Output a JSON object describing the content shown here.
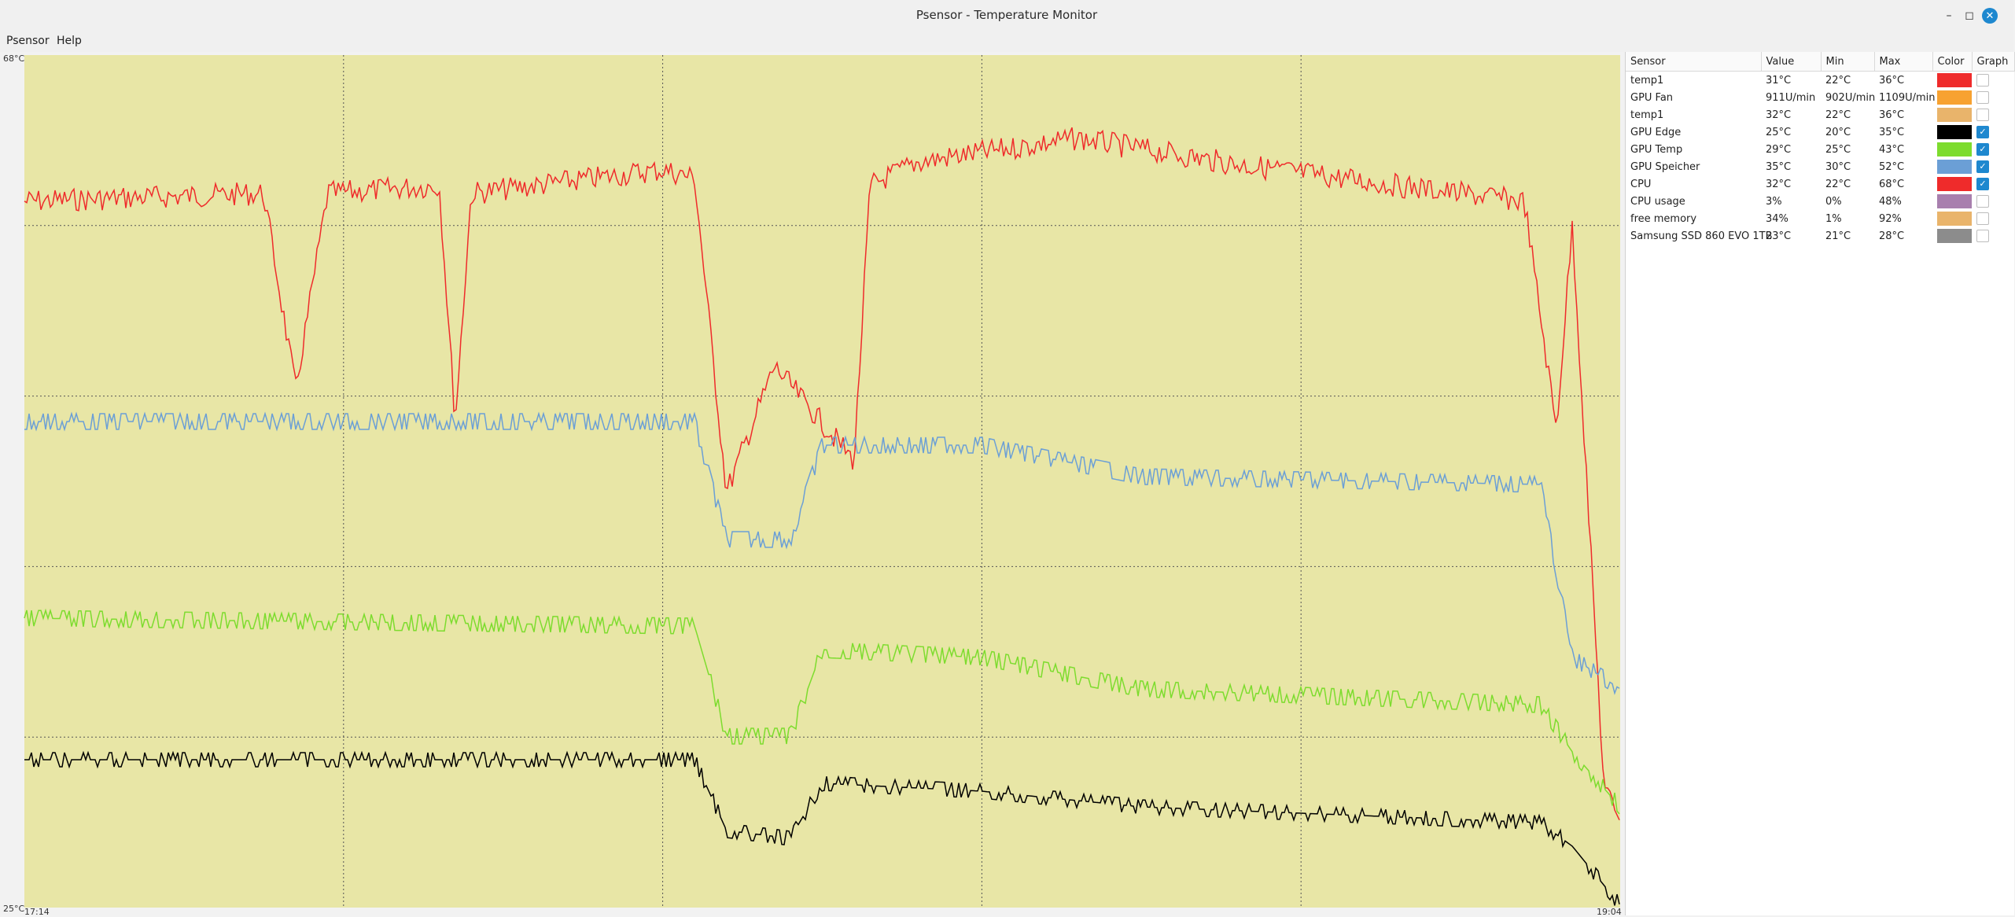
{
  "window": {
    "title": "Psensor - Temperature Monitor"
  },
  "menu": [
    {
      "label": "Psensor"
    },
    {
      "label": "Help"
    }
  ],
  "graph": {
    "y_max_label": "68°C",
    "y_min_label": "25°C",
    "x_start_label": "17:14",
    "x_end_label": "19:04",
    "background": "#e8e6a6"
  },
  "table": {
    "headers": {
      "sensor": "Sensor",
      "value": "Value",
      "min": "Min",
      "max": "Max",
      "color": "Color",
      "graph": "Graph"
    },
    "rows": [
      {
        "sensor": "temp1",
        "value": "31°C",
        "min": "22°C",
        "max": "36°C",
        "color": "#ef2b2b",
        "graph": false
      },
      {
        "sensor": "GPU Fan",
        "value": "911U/min",
        "min": "902U/min",
        "max": "1109U/min",
        "color": "#f7a231",
        "graph": false
      },
      {
        "sensor": "temp1",
        "value": "32°C",
        "min": "22°C",
        "max": "36°C",
        "color": "#e9b46b",
        "graph": false
      },
      {
        "sensor": "GPU Edge",
        "value": "25°C",
        "min": "20°C",
        "max": "35°C",
        "color": "#000000",
        "graph": true
      },
      {
        "sensor": "GPU Temp",
        "value": "29°C",
        "min": "25°C",
        "max": "43°C",
        "color": "#7ddc2e",
        "graph": true
      },
      {
        "sensor": "GPU Speicher",
        "value": "35°C",
        "min": "30°C",
        "max": "52°C",
        "color": "#6b9fd6",
        "graph": true
      },
      {
        "sensor": "CPU",
        "value": "32°C",
        "min": "22°C",
        "max": "68°C",
        "color": "#ef2b2b",
        "graph": true
      },
      {
        "sensor": "CPU usage",
        "value": "3%",
        "min": "0%",
        "max": "48%",
        "color": "#a87fae",
        "graph": false
      },
      {
        "sensor": "free memory",
        "value": "34%",
        "min": "1%",
        "max": "92%",
        "color": "#e9b46b",
        "graph": false
      },
      {
        "sensor": "Samsung SSD 860 EVO 1TB",
        "value": "23°C",
        "min": "21°C",
        "max": "28°C",
        "color": "#8c8c8c",
        "graph": false
      }
    ]
  }
}
